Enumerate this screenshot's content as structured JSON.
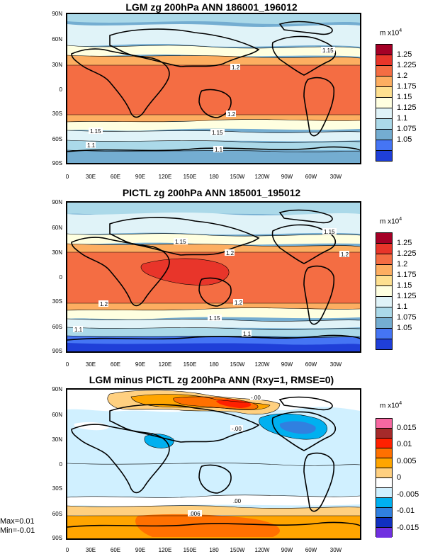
{
  "panels": [
    {
      "title": "LGM zg 200hPa ANN 186001_196012",
      "unit": "m x10",
      "unit_exp": "4",
      "colorbar": {
        "labels": [
          "1.25",
          "1.225",
          "1.2",
          "1.175",
          "1.15",
          "1.125",
          "1.1",
          "1.075",
          "1.05"
        ],
        "colors": [
          "#a50026",
          "#e8352a",
          "#f46d43",
          "#fdae61",
          "#fee090",
          "#ffffe0",
          "#e0f3f8",
          "#abd9e9",
          "#74add1",
          "#4575f4",
          "#1f3fd8"
        ]
      },
      "contour_labels": [
        "1.15",
        "1.2",
        "1.2",
        "1.15",
        "1.15",
        "1.1",
        "1.1"
      ]
    },
    {
      "title": "PICTL zg 200hPa ANN 185001_195012",
      "unit": "m x10",
      "unit_exp": "4",
      "colorbar": {
        "labels": [
          "1.25",
          "1.225",
          "1.2",
          "1.175",
          "1.15",
          "1.125",
          "1.1",
          "1.075",
          "1.05"
        ],
        "colors": [
          "#a50026",
          "#e8352a",
          "#f46d43",
          "#fdae61",
          "#fee090",
          "#ffffe0",
          "#e0f3f8",
          "#abd9e9",
          "#74add1",
          "#4575f4",
          "#1f3fd8"
        ]
      },
      "contour_labels": [
        "1.15",
        "1.15",
        "1.2",
        "1.2",
        "1.2",
        "1.2",
        "1.15",
        "1.1",
        "1.1"
      ]
    },
    {
      "title": "LGM minus PICTL zg 200hPa ANN (Rxy=1, RMSE=0)",
      "unit": "m x10",
      "unit_exp": "4",
      "colorbar": {
        "labels": [
          "0.015",
          "0.01",
          "0.005",
          "0",
          "-0.005",
          "-0.01",
          "-0.015"
        ],
        "colors": [
          "#f768a1",
          "#a52a2a",
          "#ff2000",
          "#ff7000",
          "#ffa500",
          "#ffd080",
          "#ffffff",
          "#d0f0ff",
          "#00b0f0",
          "#3080e0",
          "#1030c0",
          "#7030e0"
        ]
      },
      "contour_labels": [
        "-.00",
        "-.00",
        ".006",
        ".00"
      ],
      "stats": {
        "max": "Max=0.01",
        "min": "Min=-0.01"
      }
    }
  ],
  "lat_ticks": [
    "90N",
    "60N",
    "30N",
    "0",
    "30S",
    "60S",
    "90S"
  ],
  "lon_ticks": [
    "0",
    "30E",
    "60E",
    "90E",
    "120E",
    "150E",
    "180",
    "150W",
    "120W",
    "90W",
    "60W",
    "30W"
  ]
}
